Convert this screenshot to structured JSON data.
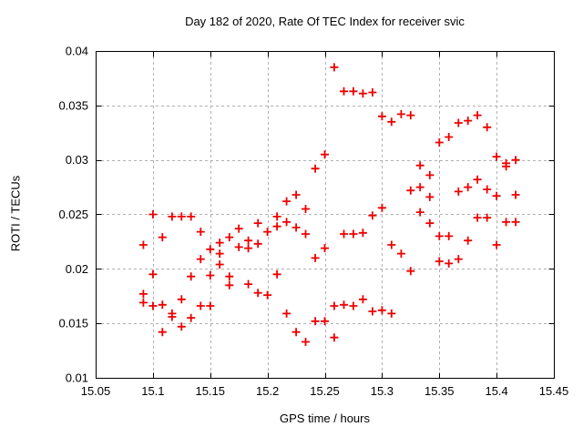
{
  "chart_data": {
    "type": "scatter",
    "title": "Day 182 of 2020, Rate Of TEC Index for receiver svic",
    "xlabel": "GPS time / hours",
    "ylabel": "ROTI / TECUs",
    "xlim": [
      15.05,
      15.45
    ],
    "ylim": [
      0.01,
      0.04
    ],
    "x_ticks": [
      15.05,
      15.1,
      15.15,
      15.2,
      15.25,
      15.3,
      15.35,
      15.4,
      15.45
    ],
    "x_tick_labels": [
      "15.05",
      "15.1",
      "15.15",
      "15.2",
      "15.25",
      "15.3",
      "15.35",
      "15.4",
      "15.45"
    ],
    "y_ticks": [
      0.01,
      0.015,
      0.02,
      0.025,
      0.03,
      0.035,
      0.04
    ],
    "y_tick_labels": [
      "0.01",
      "0.015",
      "0.02",
      "0.025",
      "0.03",
      "0.035",
      "0.04"
    ],
    "grid": true,
    "legend": "none",
    "marker": {
      "shape": "plus",
      "color": "#ee0000",
      "size": 9
    },
    "grid_color": "#b0b0b0",
    "axis_color": "#000000",
    "points": [
      [
        15.0917,
        0.0222
      ],
      [
        15.0917,
        0.0177
      ],
      [
        15.0917,
        0.0169
      ],
      [
        15.1,
        0.025
      ],
      [
        15.1,
        0.0195
      ],
      [
        15.1,
        0.0166
      ],
      [
        15.1083,
        0.0229
      ],
      [
        15.1083,
        0.0167
      ],
      [
        15.1083,
        0.0142
      ],
      [
        15.1167,
        0.0248
      ],
      [
        15.1167,
        0.0159
      ],
      [
        15.1167,
        0.0156
      ],
      [
        15.125,
        0.0248
      ],
      [
        15.125,
        0.0172
      ],
      [
        15.125,
        0.0147
      ],
      [
        15.1333,
        0.0248
      ],
      [
        15.1333,
        0.0193
      ],
      [
        15.1333,
        0.0155
      ],
      [
        15.1417,
        0.0234
      ],
      [
        15.1417,
        0.0209
      ],
      [
        15.1417,
        0.0166
      ],
      [
        15.15,
        0.0218
      ],
      [
        15.15,
        0.0194
      ],
      [
        15.15,
        0.0166
      ],
      [
        15.1583,
        0.0224
      ],
      [
        15.1583,
        0.0214
      ],
      [
        15.1583,
        0.0204
      ],
      [
        15.1667,
        0.0229
      ],
      [
        15.1667,
        0.0193
      ],
      [
        15.1667,
        0.0185
      ],
      [
        15.175,
        0.0237
      ],
      [
        15.175,
        0.022
      ],
      [
        15.1833,
        0.0226
      ],
      [
        15.1833,
        0.0219
      ],
      [
        15.1833,
        0.0186
      ],
      [
        15.1917,
        0.0242
      ],
      [
        15.1917,
        0.0223
      ],
      [
        15.1917,
        0.0178
      ],
      [
        15.2,
        0.0234
      ],
      [
        15.2,
        0.0176
      ],
      [
        15.2083,
        0.0248
      ],
      [
        15.2083,
        0.0239
      ],
      [
        15.2083,
        0.0195
      ],
      [
        15.2167,
        0.0262
      ],
      [
        15.2167,
        0.0243
      ],
      [
        15.2167,
        0.0159
      ],
      [
        15.225,
        0.0268
      ],
      [
        15.225,
        0.0238
      ],
      [
        15.225,
        0.0142
      ],
      [
        15.2333,
        0.0255
      ],
      [
        15.2333,
        0.0232
      ],
      [
        15.2333,
        0.0133
      ],
      [
        15.2417,
        0.0292
      ],
      [
        15.2417,
        0.021
      ],
      [
        15.2417,
        0.0152
      ],
      [
        15.25,
        0.0305
      ],
      [
        15.25,
        0.0219
      ],
      [
        15.25,
        0.0152
      ],
      [
        15.2583,
        0.0385
      ],
      [
        15.2583,
        0.0166
      ],
      [
        15.2583,
        0.0137
      ],
      [
        15.2667,
        0.0363
      ],
      [
        15.2667,
        0.0232
      ],
      [
        15.2667,
        0.0167
      ],
      [
        15.275,
        0.0363
      ],
      [
        15.275,
        0.0232
      ],
      [
        15.275,
        0.0166
      ],
      [
        15.2833,
        0.0361
      ],
      [
        15.2833,
        0.0233
      ],
      [
        15.2833,
        0.0172
      ],
      [
        15.2917,
        0.0362
      ],
      [
        15.2917,
        0.0249
      ],
      [
        15.2917,
        0.0161
      ],
      [
        15.3,
        0.034
      ],
      [
        15.3,
        0.0256
      ],
      [
        15.3,
        0.0162
      ],
      [
        15.3083,
        0.0335
      ],
      [
        15.3083,
        0.0222
      ],
      [
        15.3083,
        0.0159
      ],
      [
        15.3167,
        0.0342
      ],
      [
        15.3167,
        0.0214
      ],
      [
        15.325,
        0.0341
      ],
      [
        15.325,
        0.0272
      ],
      [
        15.325,
        0.0198
      ],
      [
        15.3333,
        0.0295
      ],
      [
        15.3333,
        0.0275
      ],
      [
        15.3333,
        0.0252
      ],
      [
        15.3417,
        0.0286
      ],
      [
        15.3417,
        0.0266
      ],
      [
        15.3417,
        0.0242
      ],
      [
        15.35,
        0.0316
      ],
      [
        15.35,
        0.023
      ],
      [
        15.35,
        0.0207
      ],
      [
        15.3583,
        0.0321
      ],
      [
        15.3583,
        0.023
      ],
      [
        15.3583,
        0.0205
      ],
      [
        15.3667,
        0.0334
      ],
      [
        15.3667,
        0.0271
      ],
      [
        15.3667,
        0.0209
      ],
      [
        15.375,
        0.0336
      ],
      [
        15.375,
        0.0275
      ],
      [
        15.375,
        0.0226
      ],
      [
        15.3833,
        0.0341
      ],
      [
        15.3833,
        0.0282
      ],
      [
        15.3833,
        0.0247
      ],
      [
        15.3917,
        0.033
      ],
      [
        15.3917,
        0.0273
      ],
      [
        15.3917,
        0.0247
      ],
      [
        15.4,
        0.0303
      ],
      [
        15.4,
        0.0267
      ],
      [
        15.4,
        0.0222
      ],
      [
        15.4083,
        0.0297
      ],
      [
        15.4083,
        0.0294
      ],
      [
        15.4083,
        0.0243
      ],
      [
        15.4167,
        0.03
      ],
      [
        15.4167,
        0.0268
      ],
      [
        15.4167,
        0.0243
      ]
    ]
  }
}
